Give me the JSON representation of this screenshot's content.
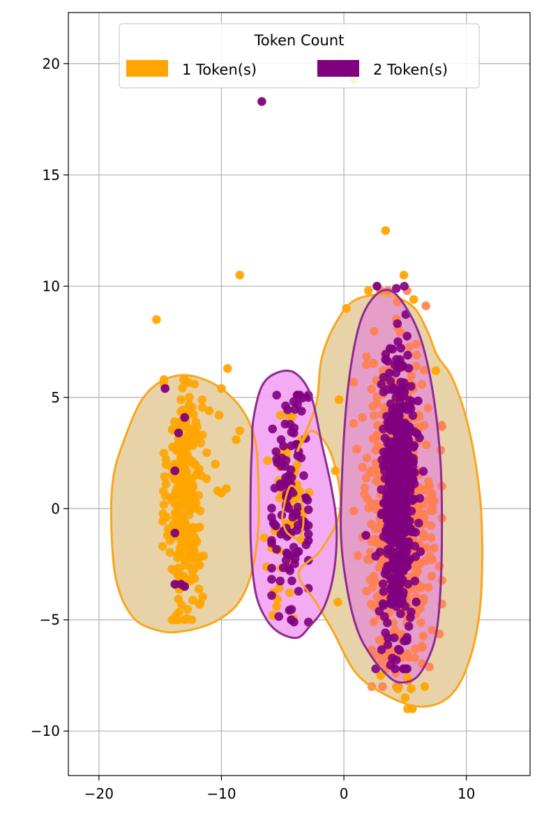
{
  "chart_data": {
    "type": "scatter",
    "title": "",
    "xlabel": "",
    "ylabel": "",
    "xlim": [
      -22.5,
      15.2
    ],
    "ylim": [
      -12.0,
      22.3
    ],
    "grid": true,
    "x_ticks": [
      -20,
      -10,
      0,
      10
    ],
    "y_ticks": [
      -10,
      -5,
      0,
      5,
      10,
      15,
      20
    ],
    "x_tick_labels": [
      "−20",
      "−10",
      "0",
      "10"
    ],
    "y_tick_labels": [
      "−10",
      "−5",
      "0",
      "5",
      "10",
      "15",
      "20"
    ],
    "legend": {
      "title": "Token Count",
      "placement": "top-center",
      "entries": [
        {
          "label": "1 Token(s)",
          "color": "#FFA500"
        },
        {
          "label": "2 Token(s)",
          "color": "#800080"
        }
      ]
    },
    "series": [
      {
        "name": "1 Token(s)",
        "color": "#FFA500",
        "color_right_cluster": "#FF7F50",
        "clusters": [
          {
            "cx": -13.0,
            "cy": 0.5,
            "sx": 0.7,
            "sy": 2.6,
            "n": 320,
            "xmin": -14.8,
            "xmax": -11.2,
            "ymin": -5.0,
            "ymax": 5.8
          },
          {
            "cx": -4.7,
            "cy": 0.0,
            "sx": 1.0,
            "sy": 2.3,
            "n": 55,
            "xmin": -6.5,
            "xmax": -2.8,
            "ymin": -5.2,
            "ymax": 4.2
          },
          {
            "cx": 4.6,
            "cy": 0.0,
            "sx": 1.5,
            "sy": 3.6,
            "n": 520,
            "xmin": 0.8,
            "xmax": 8.0,
            "ymin": -8.0,
            "ymax": 9.8
          }
        ],
        "extra_points": [
          [
            -15.3,
            8.5
          ],
          [
            -8.5,
            10.5
          ],
          [
            -9.5,
            6.3
          ],
          [
            -10.0,
            5.4
          ],
          [
            -8.8,
            3.1
          ],
          [
            -8.5,
            3.5
          ],
          [
            -9.6,
            0.9
          ],
          [
            -10.3,
            0.8
          ],
          [
            -10.0,
            0.7
          ],
          [
            -10.5,
            2.0
          ],
          [
            -11.0,
            4.4
          ],
          [
            -10.2,
            4.2
          ],
          [
            -14.7,
            5.8
          ],
          [
            0.8,
            19.3
          ],
          [
            3.4,
            12.5
          ],
          [
            4.9,
            10.5
          ],
          [
            5.7,
            9.4
          ],
          [
            2.0,
            9.8
          ],
          [
            0.2,
            9.0
          ],
          [
            -0.4,
            4.9
          ],
          [
            -0.7,
            1.7
          ],
          [
            -0.5,
            -4.2
          ],
          [
            3.0,
            -7.5
          ],
          [
            4.4,
            -8.1
          ],
          [
            5.0,
            -8.5
          ],
          [
            5.2,
            -9.0
          ],
          [
            5.6,
            -9.0
          ],
          [
            6.6,
            -8.0
          ],
          [
            5.5,
            -8.1
          ],
          [
            5.2,
            -7.6
          ],
          [
            7.5,
            6.2
          ],
          [
            -13.0,
            -5.0
          ],
          [
            -13.7,
            -4.8
          ],
          [
            -11.8,
            -4.3
          ],
          [
            -14.4,
            -1.2
          ],
          [
            -5.8,
            -4.8
          ],
          [
            -5.5,
            -4.4
          ]
        ]
      },
      {
        "name": "2 Token(s)",
        "color": "#800080",
        "clusters": [
          {
            "cx": -4.4,
            "cy": 0.3,
            "sx": 0.85,
            "sy": 2.6,
            "n": 120,
            "xmin": -5.9,
            "xmax": -2.9,
            "ymin": -5.1,
            "ymax": 5.1
          },
          {
            "cx": 4.5,
            "cy": 0.5,
            "sx": 0.65,
            "sy": 3.0,
            "n": 540,
            "xmin": 2.6,
            "xmax": 6.6,
            "ymin": -7.2,
            "ymax": 10.0
          }
        ],
        "extra_points": [
          [
            -6.7,
            18.3
          ],
          [
            -14.6,
            5.4
          ],
          [
            -13.0,
            4.1
          ],
          [
            -13.5,
            3.4
          ],
          [
            -13.8,
            1.7
          ],
          [
            -13.8,
            -1.1
          ],
          [
            -13.8,
            -3.4
          ],
          [
            -13.3,
            -3.4
          ],
          [
            -13.0,
            -3.5
          ],
          [
            -4.3,
            -5.0
          ],
          [
            2.7,
            10.0
          ],
          [
            3.4,
            6.7
          ],
          [
            1.8,
            -1.2
          ],
          [
            5.9,
            -4.2
          ]
        ]
      }
    ],
    "density_contours": [
      {
        "series": "1 Token(s)",
        "stroke": "#FAA61A",
        "fill": "#E8D2A8",
        "regions": [
          [
            [
              -19.0,
              -0.5
            ],
            [
              -18.6,
              -3.2
            ],
            [
              -17.2,
              -4.9
            ],
            [
              -15.0,
              -5.5
            ],
            [
              -13.0,
              -5.5
            ],
            [
              -10.6,
              -5.1
            ],
            [
              -8.7,
              -4.3
            ],
            [
              -7.6,
              -3.0
            ],
            [
              -7.0,
              -1.0
            ],
            [
              -7.0,
              1.4
            ],
            [
              -7.3,
              3.2
            ],
            [
              -8.5,
              4.6
            ],
            [
              -10.6,
              5.6
            ],
            [
              -13.0,
              6.0
            ],
            [
              -15.0,
              5.7
            ],
            [
              -16.6,
              4.8
            ],
            [
              -18.0,
              3.0
            ],
            [
              -18.8,
              1.5
            ]
          ],
          [
            [
              -1.8,
              6.8
            ],
            [
              -0.5,
              8.5
            ],
            [
              1.0,
              9.4
            ],
            [
              3.5,
              9.6
            ],
            [
              5.6,
              9.1
            ],
            [
              6.8,
              8.0
            ],
            [
              7.6,
              6.9
            ],
            [
              8.9,
              5.8
            ],
            [
              10.2,
              3.6
            ],
            [
              11.1,
              0.6
            ],
            [
              11.3,
              -2.3
            ],
            [
              11.0,
              -5.0
            ],
            [
              10.0,
              -7.2
            ],
            [
              8.5,
              -8.5
            ],
            [
              6.2,
              -8.9
            ],
            [
              3.5,
              -8.4
            ],
            [
              1.0,
              -7.4
            ],
            [
              -0.9,
              -5.5
            ],
            [
              -2.3,
              -4.2
            ],
            [
              -3.7,
              -2.9
            ],
            [
              -1.8,
              -1.8
            ],
            [
              -0.3,
              0.0
            ],
            [
              -1.0,
              2.4
            ],
            [
              -2.6,
              3.5
            ],
            [
              -3.8,
              2.6
            ],
            [
              -2.3,
              4.6
            ]
          ],
          [
            [
              -5.0,
              -0.2
            ],
            [
              -4.4,
              1.0
            ],
            [
              -3.6,
              0.6
            ],
            [
              -3.3,
              -0.5
            ],
            [
              -3.6,
              -1.3
            ],
            [
              -4.4,
              -1.2
            ],
            [
              -4.9,
              -0.8
            ]
          ]
        ]
      },
      {
        "series": "2 Token(s)",
        "stroke": "#8E2A90",
        "fill_left": "#F2A6F2",
        "fill_right": "#E59ACB",
        "regions": [
          [
            [
              -7.4,
              4.0
            ],
            [
              -6.7,
              5.5
            ],
            [
              -5.5,
              6.1
            ],
            [
              -4.0,
              6.1
            ],
            [
              -2.7,
              5.1
            ],
            [
              -1.8,
              2.9
            ],
            [
              -1.0,
              0.9
            ],
            [
              -0.6,
              -0.8
            ],
            [
              -0.8,
              -2.8
            ],
            [
              -1.6,
              -4.4
            ],
            [
              -2.8,
              -5.3
            ],
            [
              -3.8,
              -5.8
            ],
            [
              -5.2,
              -5.6
            ],
            [
              -6.3,
              -5.0
            ],
            [
              -7.2,
              -3.8
            ],
            [
              -7.6,
              -1.6
            ],
            [
              -7.6,
              1.4
            ],
            [
              -7.5,
              2.8
            ]
          ],
          [
            [
              1.4,
              8.5
            ],
            [
              2.6,
              9.6
            ],
            [
              3.8,
              9.8
            ],
            [
              5.0,
              9.1
            ],
            [
              6.3,
              7.6
            ],
            [
              7.3,
              5.1
            ],
            [
              7.9,
              2.0
            ],
            [
              8.0,
              -1.0
            ],
            [
              7.9,
              -3.5
            ],
            [
              7.6,
              -5.4
            ],
            [
              7.0,
              -6.6
            ],
            [
              5.9,
              -7.6
            ],
            [
              4.4,
              -7.8
            ],
            [
              3.2,
              -7.3
            ],
            [
              2.2,
              -6.6
            ],
            [
              1.2,
              -5.6
            ],
            [
              0.4,
              -4.0
            ],
            [
              -0.2,
              -1.6
            ],
            [
              -0.2,
              0.7
            ],
            [
              0.1,
              4.0
            ],
            [
              0.6,
              6.5
            ]
          ]
        ]
      }
    ]
  }
}
